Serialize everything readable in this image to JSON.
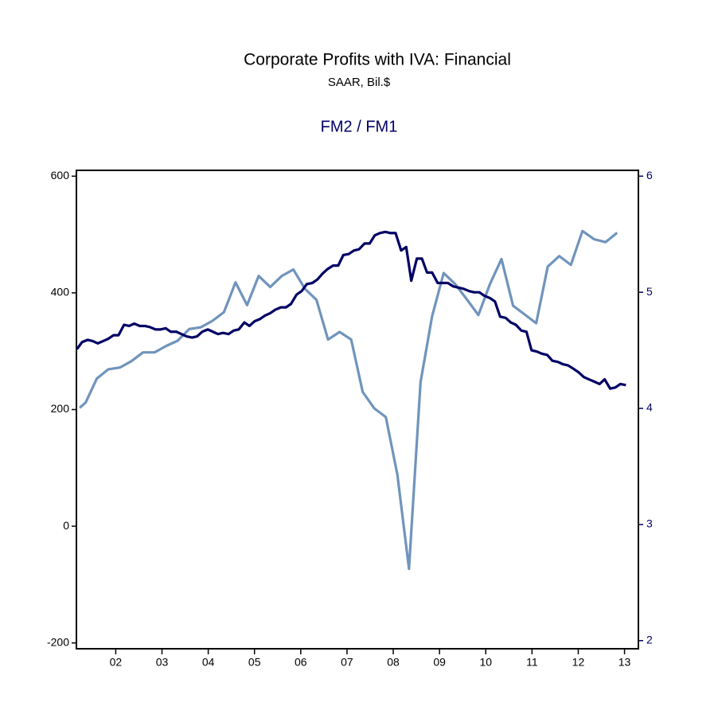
{
  "chart_data": {
    "type": "line",
    "title": "Corporate Profits with IVA: Financial",
    "subtitle": "SAAR, Bil.$",
    "xlim": [
      2001.65,
      2013.8
    ],
    "xticks": [
      {
        "value": 2002.5,
        "label": "02"
      },
      {
        "value": 2003.5,
        "label": "03"
      },
      {
        "value": 2004.5,
        "label": "04"
      },
      {
        "value": 2005.5,
        "label": "05"
      },
      {
        "value": 2006.5,
        "label": "06"
      },
      {
        "value": 2007.5,
        "label": "07"
      },
      {
        "value": 2008.5,
        "label": "08"
      },
      {
        "value": 2009.5,
        "label": "09"
      },
      {
        "value": 2010.5,
        "label": "10"
      },
      {
        "value": 2011.5,
        "label": "11"
      },
      {
        "value": 2012.5,
        "label": "12"
      },
      {
        "value": 2013.5,
        "label": "13"
      }
    ],
    "ylim": [
      -210,
      610
    ],
    "yticks": [
      -200,
      0,
      200,
      400,
      600
    ],
    "y2lim": [
      1.93,
      6.05
    ],
    "y2ticks": [
      2,
      3,
      4,
      5,
      6
    ],
    "series": [
      {
        "name": "FM2 / FM1",
        "color": "#000066",
        "axis": "y2",
        "x": [
          2001.66,
          2001.77,
          2001.89,
          2002.0,
          2002.11,
          2002.23,
          2002.34,
          2002.45,
          2002.56,
          2002.68,
          2002.79,
          2002.9,
          2003.02,
          2003.13,
          2003.24,
          2003.36,
          2003.47,
          2003.58,
          2003.69,
          2003.81,
          2003.92,
          2004.03,
          2004.15,
          2004.26,
          2004.37,
          2004.49,
          2004.6,
          2004.71,
          2004.82,
          2004.94,
          2005.05,
          2005.16,
          2005.28,
          2005.39,
          2005.5,
          2005.62,
          2005.73,
          2005.84,
          2005.95,
          2006.07,
          2006.18,
          2006.29,
          2006.41,
          2006.52,
          2006.63,
          2006.75,
          2006.86,
          2006.97,
          2007.08,
          2007.2,
          2007.31,
          2007.42,
          2007.54,
          2007.65,
          2007.76,
          2007.88,
          2007.99,
          2008.1,
          2008.21,
          2008.33,
          2008.44,
          2008.55,
          2008.67,
          2008.78,
          2008.89,
          2009.01,
          2009.12,
          2009.23,
          2009.34,
          2009.46,
          2009.57,
          2009.68,
          2009.8,
          2009.91,
          2010.02,
          2010.14,
          2010.25,
          2010.36,
          2010.47,
          2010.59,
          2010.7,
          2010.81,
          2010.93,
          2011.04,
          2011.15,
          2011.27,
          2011.38,
          2011.49,
          2011.6,
          2011.72,
          2011.83,
          2011.94,
          2012.06,
          2012.17,
          2012.28,
          2012.4,
          2012.51,
          2012.62,
          2012.73,
          2012.85,
          2012.96,
          2013.07,
          2013.19,
          2013.3,
          2013.41,
          2013.53
        ],
        "values": [
          4.51,
          4.57,
          4.59,
          4.58,
          4.56,
          4.58,
          4.6,
          4.63,
          4.63,
          4.72,
          4.71,
          4.73,
          4.71,
          4.71,
          4.7,
          4.68,
          4.68,
          4.69,
          4.66,
          4.66,
          4.64,
          4.62,
          4.61,
          4.62,
          4.66,
          4.68,
          4.66,
          4.64,
          4.65,
          4.64,
          4.67,
          4.68,
          4.74,
          4.71,
          4.75,
          4.77,
          4.8,
          4.82,
          4.85,
          4.87,
          4.87,
          4.9,
          4.98,
          5.01,
          5.07,
          5.08,
          5.11,
          5.16,
          5.2,
          5.23,
          5.23,
          5.32,
          5.33,
          5.36,
          5.37,
          5.42,
          5.42,
          5.49,
          5.51,
          5.52,
          5.51,
          5.51,
          5.36,
          5.39,
          5.1,
          5.29,
          5.29,
          5.17,
          5.17,
          5.08,
          5.08,
          5.08,
          5.05,
          5.04,
          5.03,
          5.01,
          5.0,
          5.0,
          4.97,
          4.95,
          4.92,
          4.79,
          4.78,
          4.74,
          4.72,
          4.67,
          4.66,
          4.5,
          4.49,
          4.47,
          4.46,
          4.41,
          4.4,
          4.38,
          4.37,
          4.34,
          4.31,
          4.27,
          4.25,
          4.23,
          4.21,
          4.25,
          4.17,
          4.18,
          4.21,
          4.2
        ]
      },
      {
        "color": "#7094bc",
        "x": [
          2001.72,
          2001.85,
          2002.09,
          2002.34,
          2002.59,
          2002.84,
          2003.09,
          2003.34,
          2003.59,
          2003.84,
          2004.09,
          2004.34,
          2004.59,
          2004.84,
          2005.09,
          2005.34,
          2005.59,
          2005.84,
          2006.09,
          2006.34,
          2006.59,
          2006.84,
          2007.09,
          2007.34,
          2007.59,
          2007.84,
          2008.09,
          2008.34,
          2008.59,
          2008.84,
          2009.09,
          2009.34,
          2009.59,
          2009.84,
          2010.09,
          2010.34,
          2010.59,
          2010.84,
          2011.09,
          2011.34,
          2011.59,
          2011.84,
          2012.09,
          2012.34,
          2012.59,
          2012.84,
          2013.09,
          2013.34
        ],
        "values": [
          203,
          212,
          253,
          269,
          272,
          283,
          298,
          298,
          309,
          318,
          338,
          341,
          352,
          367,
          418,
          379,
          429,
          410,
          429,
          440,
          407,
          388,
          320,
          333,
          320,
          230,
          202,
          187,
          88,
          -73,
          247,
          360,
          434,
          415,
          389,
          362,
          415,
          458,
          378,
          363,
          348,
          445,
          463,
          448,
          506,
          492,
          487,
          503
        ]
      }
    ]
  }
}
